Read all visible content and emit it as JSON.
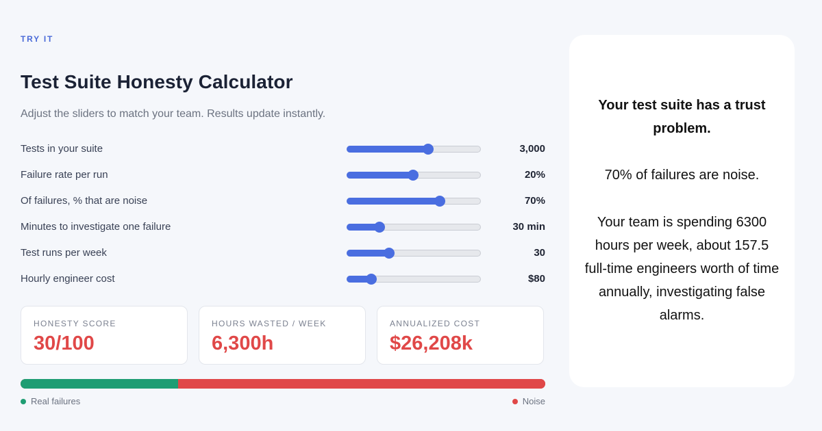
{
  "header": {
    "eyebrow": "TRY IT",
    "title": "Test Suite Honesty Calculator",
    "subtitle": "Adjust the sliders to match your team. Results update instantly."
  },
  "sliders": [
    {
      "label": "Tests in your suite",
      "value": "3,000",
      "level": 0.6
    },
    {
      "label": "Failure rate per run",
      "value": "20%",
      "level": 0.49
    },
    {
      "label": "Of failures, % that are noise",
      "value": "70%",
      "level": 0.69
    },
    {
      "label": "Minutes to investigate one failure",
      "value": "30 min",
      "level": 0.24
    },
    {
      "label": "Test runs per week",
      "value": "30",
      "level": 0.31
    },
    {
      "label": "Hourly engineer cost",
      "value": "$80",
      "level": 0.18
    }
  ],
  "stats": [
    {
      "label": "HONESTY SCORE",
      "value": "30/100"
    },
    {
      "label": "HOURS WASTED / WEEK",
      "value": "6,300h"
    },
    {
      "label": "ANNUALIZED COST",
      "value": "$26,208k"
    }
  ],
  "breakdown": {
    "real_fraction": 0.3,
    "noise_fraction": 0.7,
    "real_label": "Real failures",
    "noise_label": "Noise",
    "real_color": "#1f9d73",
    "noise_color": "#e04848"
  },
  "result": {
    "verdict": "Your test suite has a trust problem.",
    "noise_line": "70% of failures are noise.",
    "summary": "Your team is spending 6300 hours per week, about 157.5 full-time engineers worth of time annually, investigating false alarms."
  },
  "colors": {
    "accent": "#4a6ee0",
    "danger": "#e04848",
    "success": "#1f9d73"
  }
}
